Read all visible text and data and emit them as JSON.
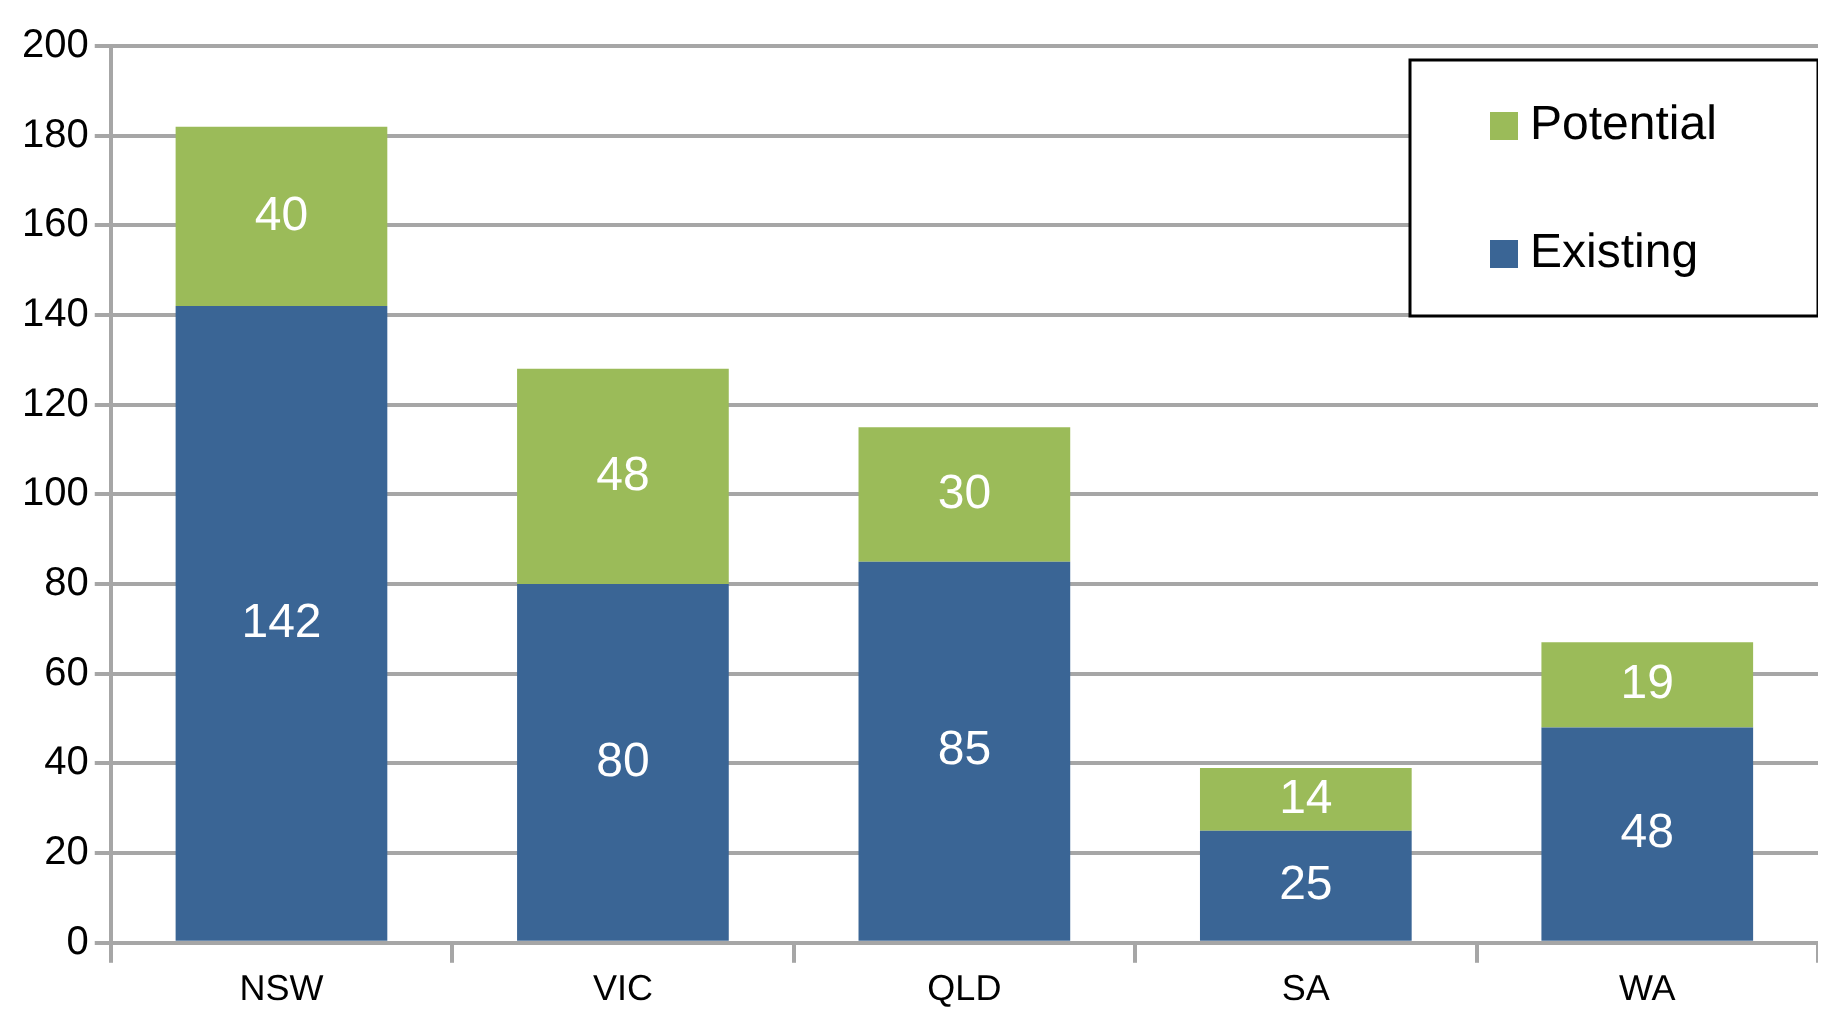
{
  "chart_data": {
    "type": "bar",
    "stacked": true,
    "categories": [
      "NSW",
      "VIC",
      "QLD",
      "SA",
      "WA"
    ],
    "series": [
      {
        "name": "Existing",
        "color": "#3a6595",
        "values": [
          142,
          80,
          85,
          25,
          48
        ]
      },
      {
        "name": "Potential",
        "color": "#9bbb59",
        "values": [
          40,
          48,
          30,
          14,
          19
        ]
      }
    ],
    "ylim": [
      0,
      200
    ],
    "yticks": [
      0,
      20,
      40,
      60,
      80,
      100,
      120,
      140,
      160,
      180,
      200
    ],
    "grid": "y",
    "legend": "top right",
    "data_labels": true
  }
}
